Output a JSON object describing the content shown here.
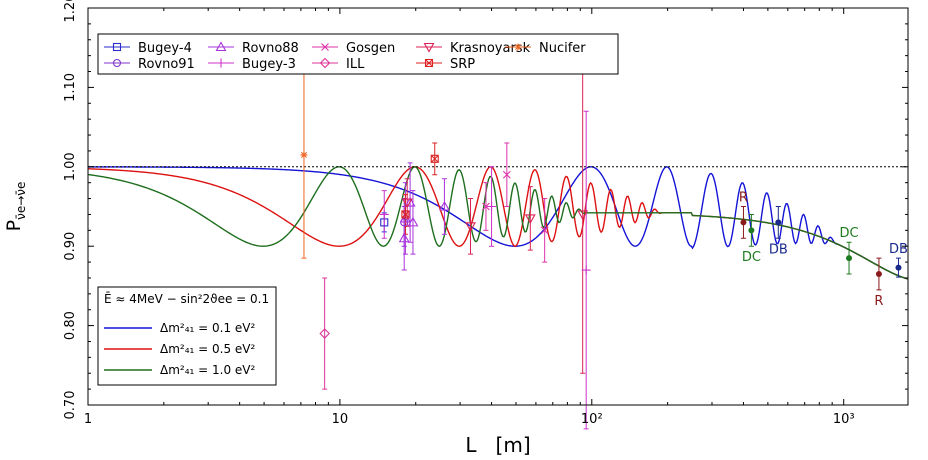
{
  "chart_data": {
    "type": "scatter",
    "xlabel": "L   [m]",
    "ylabel": "P",
    "ylabel_sub": "ν̄e→ν̄e",
    "xscale": "log",
    "xlim": [
      1,
      1800
    ],
    "ylim": [
      0.7,
      1.2
    ],
    "x_ticks": [
      {
        "v": 1,
        "label": "1"
      },
      {
        "v": 10,
        "label": "10"
      },
      {
        "v": 100,
        "label": "10²"
      },
      {
        "v": 1000,
        "label": "10³"
      }
    ],
    "y_ticks": [
      {
        "v": 0.7,
        "label": "0.70"
      },
      {
        "v": 0.8,
        "label": "0.80"
      },
      {
        "v": 0.9,
        "label": "0.90"
      },
      {
        "v": 1.0,
        "label": "1.00"
      },
      {
        "v": 1.1,
        "label": "1.10"
      },
      {
        "v": 1.2,
        "label": "1.20"
      }
    ],
    "reference_line": 1.0,
    "params_label": "Ē ≈ 4MeV − sin²2ϑee = 0.1",
    "curve_params": {
      "E_MeV": 4,
      "sin2": 0.1,
      "mean_suppression": 0.942
    },
    "legend_experiments": [
      {
        "name": "Bugey-4",
        "marker": "square",
        "color": "#2b2bcc"
      },
      {
        "name": "Rovno91",
        "marker": "circle",
        "color": "#7f33cc"
      },
      {
        "name": "Rovno88",
        "marker": "triangle",
        "color": "#aa33dd"
      },
      {
        "name": "Bugey-3",
        "marker": "plus",
        "color": "#cc33cc"
      },
      {
        "name": "Gosgen",
        "marker": "cross",
        "color": "#dd33aa"
      },
      {
        "name": "ILL",
        "marker": "diamond",
        "color": "#dd3399"
      },
      {
        "name": "Krasnoyarsk",
        "marker": "tri-down",
        "color": "#dd2255"
      },
      {
        "name": "SRP",
        "marker": "boxx",
        "color": "#dd2222"
      },
      {
        "name": "Nucifer",
        "marker": "star",
        "color": "#ee6622"
      }
    ],
    "legend_models": [
      {
        "label": "Δm²₄₁ = 0.1 eV²",
        "dm2": 0.1,
        "color": "#1414d6"
      },
      {
        "label": "Δm²₄₁ = 0.5 eV²",
        "dm2": 0.5,
        "color": "#dd1111"
      },
      {
        "label": "Δm²₄₁ = 1.0 eV²",
        "dm2": 1.0,
        "color": "#1e6e1e"
      }
    ],
    "points": [
      {
        "exp": "Bugey-4",
        "x": 15,
        "y": 0.93,
        "err": 0.012
      },
      {
        "exp": "Rovno91",
        "x": 18,
        "y": 0.93,
        "err": 0.03
      },
      {
        "exp": "Rovno88",
        "x": 18,
        "y": 0.91,
        "err": 0.04
      },
      {
        "exp": "Rovno88",
        "x": 18.2,
        "y": 0.935,
        "err": 0.045
      },
      {
        "exp": "Rovno88",
        "x": 19,
        "y": 0.955,
        "err": 0.05
      },
      {
        "exp": "Rovno88",
        "x": 19.5,
        "y": 0.93,
        "err": 0.04
      },
      {
        "exp": "Rovno88",
        "x": 26,
        "y": 0.95,
        "err": 0.035
      },
      {
        "exp": "Bugey-3",
        "x": 15,
        "y": 0.94,
        "err": 0.03
      },
      {
        "exp": "Bugey-3",
        "x": 40,
        "y": 0.95,
        "err": 0.05
      },
      {
        "exp": "Bugey-3",
        "x": 95,
        "y": 0.87,
        "err": 0.2
      },
      {
        "exp": "Gosgen",
        "x": 38,
        "y": 0.95,
        "err": 0.03
      },
      {
        "exp": "Gosgen",
        "x": 46,
        "y": 0.99,
        "err": 0.04
      },
      {
        "exp": "Gosgen",
        "x": 65,
        "y": 0.92,
        "err": 0.04
      },
      {
        "exp": "ILL",
        "x": 8.7,
        "y": 0.79,
        "err": 0.07
      },
      {
        "exp": "Krasnoyarsk",
        "x": 33,
        "y": 0.925,
        "err": 0.035
      },
      {
        "exp": "Krasnoyarsk",
        "x": 57,
        "y": 0.935,
        "err": 0.04
      },
      {
        "exp": "Krasnoyarsk",
        "x": 92,
        "y": 0.94,
        "err": 0.2
      },
      {
        "exp": "Krasnoyarsk",
        "x": 18.5,
        "y": 0.955,
        "err": 0.03
      },
      {
        "exp": "SRP",
        "x": 18.2,
        "y": 0.94,
        "err": 0.025
      },
      {
        "exp": "SRP",
        "x": 23.8,
        "y": 1.01,
        "err": 0.02
      },
      {
        "exp": "Nucifer",
        "x": 7.2,
        "y": 1.015,
        "err": 0.13
      }
    ],
    "far_points": [
      {
        "label": "R",
        "x": 400,
        "y": 0.93,
        "err": 0.02,
        "color": "#8b1a1a",
        "label_pos": "above"
      },
      {
        "label": "DC",
        "x": 430,
        "y": 0.92,
        "err": 0.02,
        "color": "#1e7a1e",
        "label_pos": "below"
      },
      {
        "label": "DB",
        "x": 550,
        "y": 0.93,
        "err": 0.02,
        "color": "#1a2a8b",
        "label_pos": "below"
      },
      {
        "label": "DC",
        "x": 1050,
        "y": 0.885,
        "err": 0.02,
        "color": "#1e7a1e",
        "label_pos": "above"
      },
      {
        "label": "R",
        "x": 1380,
        "y": 0.865,
        "err": 0.02,
        "color": "#8b1a1a",
        "label_pos": "below"
      },
      {
        "label": "DB",
        "x": 1650,
        "y": 0.873,
        "err": 0.012,
        "color": "#1a2a8b",
        "label_pos": "above"
      }
    ]
  }
}
